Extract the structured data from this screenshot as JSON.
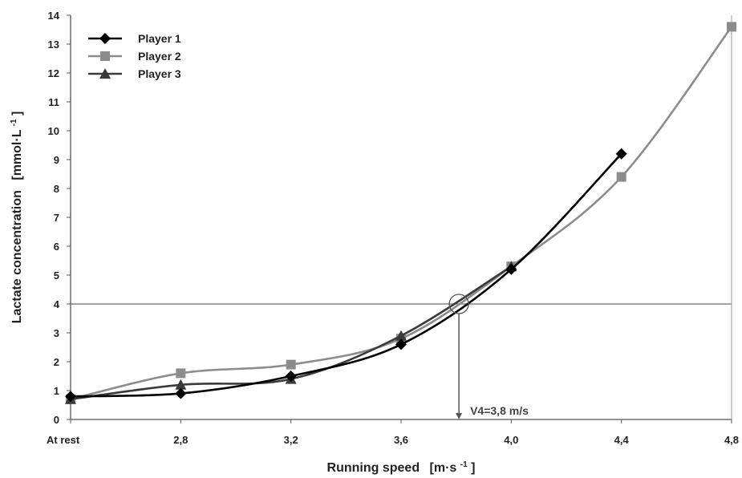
{
  "chart_data": {
    "type": "line",
    "x_label_parts": {
      "main": "Running speed",
      "unit_open": "[m·s",
      "unit_sup": "-1",
      "unit_close": "]"
    },
    "y_label_parts": {
      "main": "Lactate concentration",
      "unit_open": "[mmol·L",
      "unit_sup": "-1",
      "unit_close": "]"
    },
    "categories": [
      "At rest",
      "2,8",
      "3,2",
      "3,6",
      "4,0",
      "4,4",
      "4,8"
    ],
    "x_positions": [
      2.4,
      2.8,
      3.2,
      3.6,
      4.0,
      4.4,
      4.8
    ],
    "ylim": [
      0,
      14
    ],
    "y_ticks": [
      0,
      1,
      2,
      3,
      4,
      5,
      6,
      7,
      8,
      9,
      10,
      11,
      12,
      13,
      14
    ],
    "legend_position": "top-left",
    "grid": false,
    "series": [
      {
        "name": "Player 1",
        "color": "#000000",
        "marker": "diamond",
        "points": [
          [
            2.4,
            0.8
          ],
          [
            2.8,
            0.9
          ],
          [
            3.2,
            1.5
          ],
          [
            3.6,
            2.6
          ],
          [
            4.0,
            5.2
          ],
          [
            4.4,
            9.2
          ]
        ]
      },
      {
        "name": "Player 2",
        "color": "#8c8c8c",
        "marker": "square",
        "points": [
          [
            2.4,
            0.7
          ],
          [
            2.8,
            1.6
          ],
          [
            3.2,
            1.9
          ],
          [
            3.6,
            2.8
          ],
          [
            4.0,
            5.3
          ],
          [
            4.4,
            8.4
          ],
          [
            4.8,
            13.6
          ]
        ]
      },
      {
        "name": "Player 3",
        "color": "#3a3a3a",
        "marker": "triangle",
        "points": [
          [
            2.4,
            0.7
          ],
          [
            2.8,
            1.2
          ],
          [
            3.2,
            1.4
          ],
          [
            3.6,
            2.9
          ],
          [
            4.0,
            5.3
          ]
        ]
      }
    ],
    "threshold_line": {
      "y": 4,
      "color": "#6e6e6e"
    },
    "annotation": {
      "text": "V4=3,8 m/s",
      "x": 3.81,
      "y": 4
    }
  }
}
